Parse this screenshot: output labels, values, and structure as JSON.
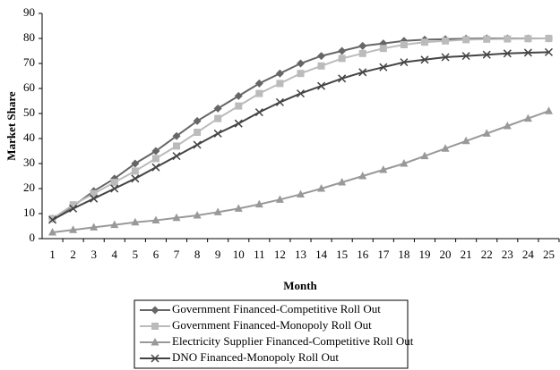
{
  "chart_data": {
    "type": "line",
    "y_label": "Market Share",
    "x_label": "Month",
    "categories": [
      "1",
      "2",
      "3",
      "4",
      "5",
      "6",
      "7",
      "8",
      "9",
      "10",
      "11",
      "12",
      "13",
      "14",
      "15",
      "16",
      "17",
      "18",
      "19",
      "20",
      "21",
      "22",
      "23",
      "24",
      "25"
    ],
    "ylim": [
      0,
      90
    ],
    "yticks": [
      0,
      10,
      20,
      30,
      40,
      50,
      60,
      70,
      80,
      90
    ],
    "grid": false,
    "series": [
      {
        "name": "Government Financed-Competitive Roll Out",
        "color": "#666666",
        "marker": "diamond",
        "values": [
          8,
          13,
          19,
          24,
          30,
          35,
          41,
          47,
          52,
          57,
          62,
          66,
          70,
          73,
          75,
          77,
          78,
          79,
          79.5,
          79.7,
          79.9,
          80,
          80,
          80,
          80
        ]
      },
      {
        "name": "Government Financed-Monopoly Roll Out",
        "color": "#bbbbbb",
        "marker": "square",
        "values": [
          8,
          13.5,
          18,
          22.5,
          27,
          32,
          37,
          42.5,
          48,
          53,
          58,
          62,
          66,
          69,
          72,
          74,
          76,
          77.5,
          78.5,
          79,
          79.5,
          79.7,
          79.8,
          79.9,
          80
        ]
      },
      {
        "name": "Electricity Supplier Financed-Competitive Roll Out",
        "color": "#999999",
        "marker": "triangle",
        "values": [
          2.5,
          3.5,
          4.5,
          5.5,
          6.5,
          7.3,
          8.3,
          9.3,
          10.6,
          12,
          13.7,
          15.6,
          17.7,
          20,
          22.5,
          25,
          27.5,
          30,
          33,
          36,
          39,
          42,
          45,
          48,
          51
        ]
      },
      {
        "name": "DNO Financed-Monopoly Roll Out",
        "color": "#444444",
        "marker": "x",
        "values": [
          7.5,
          12,
          16,
          20,
          24,
          28.5,
          33,
          37.5,
          42,
          46,
          50.5,
          54.5,
          58,
          61,
          64,
          66.5,
          68.5,
          70.5,
          71.5,
          72.5,
          73,
          73.5,
          74,
          74.3,
          74.5
        ]
      }
    ]
  }
}
